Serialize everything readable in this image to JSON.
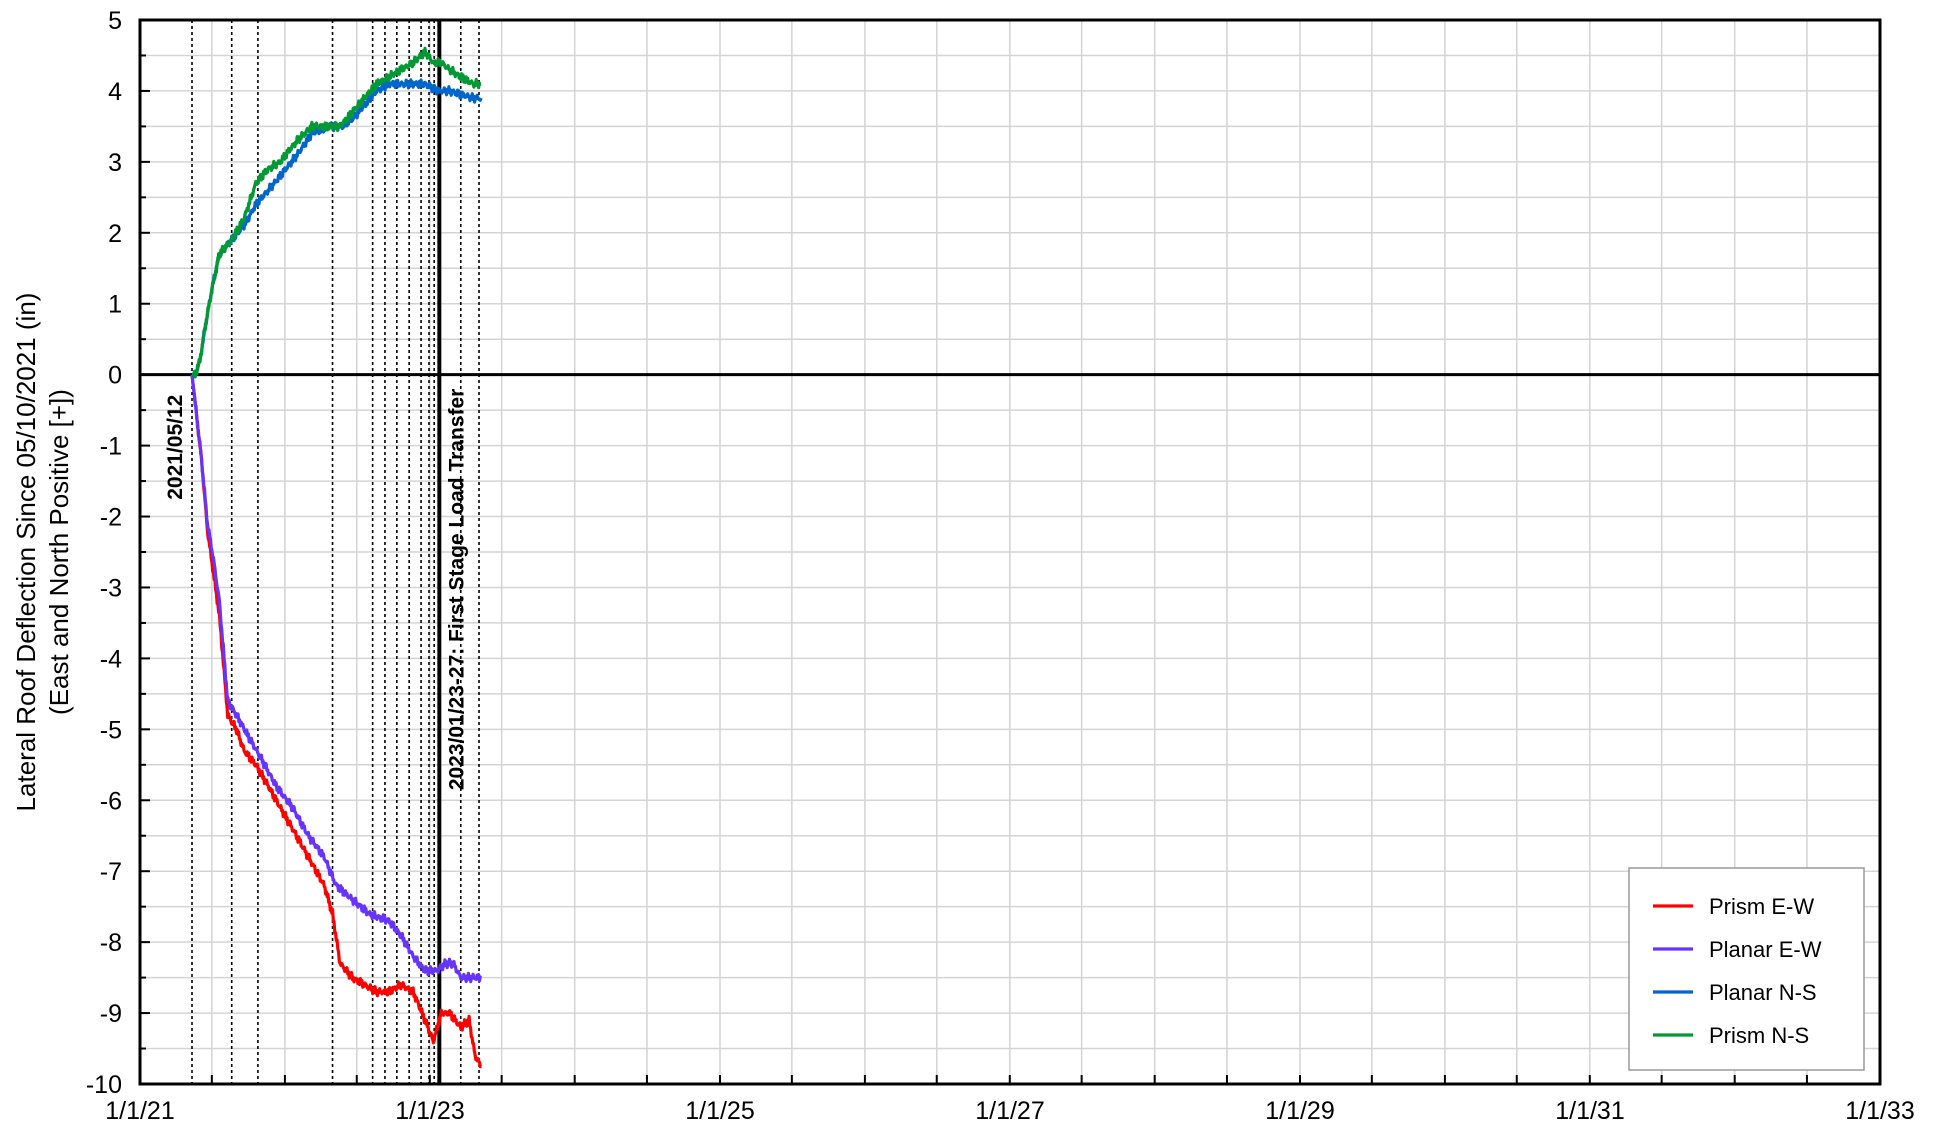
{
  "chart_data": {
    "type": "line",
    "title": "",
    "xlabel": "",
    "ylabel": [
      "Lateral Roof Deflection Since 05/10/2021 (in)",
      "(East and North Positive [+])"
    ],
    "x_ticks": [
      "1/1/21",
      "1/1/23",
      "1/1/25",
      "1/1/27",
      "1/1/29",
      "1/1/31",
      "1/1/33"
    ],
    "y_ticks": [
      "-10",
      "-9",
      "-8",
      "-7",
      "-6",
      "-5",
      "-4",
      "-3",
      "-2",
      "-1",
      "0",
      "1",
      "2",
      "3",
      "4",
      "5"
    ],
    "xlim": [
      "2021-01-01",
      "2033-01-01"
    ],
    "ylim": [
      -10,
      5
    ],
    "grid": true,
    "legend_position": "bottom-right",
    "annotations": [
      {
        "date": "2021-05-12",
        "label": "2021/05/12"
      },
      {
        "date": "2023-01-25",
        "label": "2023/01/23-27: First Stage Load Transfer"
      }
    ],
    "event_dates": [
      "2021-05-12",
      "2021-08-20",
      "2021-10-25",
      "2022-05-01",
      "2022-08-10",
      "2022-09-10",
      "2022-10-10",
      "2022-11-10",
      "2022-12-10",
      "2022-12-30",
      "2023-01-12",
      "2023-01-25",
      "2023-03-20",
      "2023-05-05"
    ],
    "series": [
      {
        "name": "Prism E-W",
        "color": "#ff0000",
        "points": [
          [
            "2021-05-12",
            0
          ],
          [
            "2021-05-20",
            -0.4
          ],
          [
            "2021-06-05",
            -1.2
          ],
          [
            "2021-06-20",
            -2.2
          ],
          [
            "2021-07-05",
            -2.8
          ],
          [
            "2021-07-20",
            -3.4
          ],
          [
            "2021-08-01",
            -4.2
          ],
          [
            "2021-08-10",
            -4.8
          ],
          [
            "2021-09-01",
            -5.0
          ],
          [
            "2021-09-20",
            -5.3
          ],
          [
            "2021-10-20",
            -5.5
          ],
          [
            "2021-11-20",
            -5.8
          ],
          [
            "2021-12-20",
            -6.1
          ],
          [
            "2022-01-20",
            -6.4
          ],
          [
            "2022-03-01",
            -6.8
          ],
          [
            "2022-04-10",
            -7.2
          ],
          [
            "2022-05-01",
            -7.6
          ],
          [
            "2022-05-20",
            -8.3
          ],
          [
            "2022-06-20",
            -8.5
          ],
          [
            "2022-07-20",
            -8.6
          ],
          [
            "2022-08-20",
            -8.7
          ],
          [
            "2022-09-20",
            -8.7
          ],
          [
            "2022-10-20",
            -8.6
          ],
          [
            "2022-11-20",
            -8.7
          ],
          [
            "2022-12-20",
            -9.1
          ],
          [
            "2023-01-10",
            -9.4
          ],
          [
            "2023-01-30",
            -9.0
          ],
          [
            "2023-02-20",
            -9.0
          ],
          [
            "2023-03-20",
            -9.2
          ],
          [
            "2023-04-10",
            -9.1
          ],
          [
            "2023-04-25",
            -9.6
          ],
          [
            "2023-05-10",
            -9.75
          ]
        ]
      },
      {
        "name": "Planar E-W",
        "color": "#6633ff",
        "points": [
          [
            "2021-05-12",
            0
          ],
          [
            "2021-05-20",
            -0.4
          ],
          [
            "2021-06-05",
            -1.2
          ],
          [
            "2021-06-20",
            -2.1
          ],
          [
            "2021-07-05",
            -2.6
          ],
          [
            "2021-07-20",
            -3.2
          ],
          [
            "2021-08-01",
            -4.0
          ],
          [
            "2021-08-10",
            -4.6
          ],
          [
            "2021-09-01",
            -4.8
          ],
          [
            "2021-10-01",
            -5.1
          ],
          [
            "2021-11-01",
            -5.4
          ],
          [
            "2021-12-10",
            -5.8
          ],
          [
            "2022-01-20",
            -6.1
          ],
          [
            "2022-03-01",
            -6.5
          ],
          [
            "2022-04-10",
            -6.8
          ],
          [
            "2022-05-10",
            -7.2
          ],
          [
            "2022-06-20",
            -7.4
          ],
          [
            "2022-08-01",
            -7.6
          ],
          [
            "2022-09-20",
            -7.7
          ],
          [
            "2022-10-20",
            -7.9
          ],
          [
            "2022-11-20",
            -8.2
          ],
          [
            "2022-12-20",
            -8.4
          ],
          [
            "2023-01-20",
            -8.4
          ],
          [
            "2023-02-10",
            -8.3
          ],
          [
            "2023-03-01",
            -8.3
          ],
          [
            "2023-03-20",
            -8.5
          ],
          [
            "2023-04-20",
            -8.5
          ],
          [
            "2023-05-10",
            -8.5
          ]
        ]
      },
      {
        "name": "Planar N-S",
        "color": "#0066cc",
        "points": [
          [
            "2021-05-12",
            0
          ],
          [
            "2021-05-20",
            0.0
          ],
          [
            "2021-06-01",
            0.2
          ],
          [
            "2021-06-15",
            0.7
          ],
          [
            "2021-07-01",
            1.2
          ],
          [
            "2021-07-20",
            1.7
          ],
          [
            "2021-08-20",
            1.9
          ],
          [
            "2021-09-20",
            2.1
          ],
          [
            "2021-10-20",
            2.4
          ],
          [
            "2021-11-20",
            2.6
          ],
          [
            "2021-12-20",
            2.8
          ],
          [
            "2022-02-01",
            3.1
          ],
          [
            "2022-03-10",
            3.4
          ],
          [
            "2022-04-20",
            3.5
          ],
          [
            "2022-05-20",
            3.5
          ],
          [
            "2022-06-20",
            3.6
          ],
          [
            "2022-07-20",
            3.8
          ],
          [
            "2022-08-20",
            4.0
          ],
          [
            "2022-09-20",
            4.1
          ],
          [
            "2022-10-20",
            4.1
          ],
          [
            "2022-11-20",
            4.1
          ],
          [
            "2022-12-20",
            4.1
          ],
          [
            "2023-01-20",
            4.0
          ],
          [
            "2023-02-20",
            4.0
          ],
          [
            "2023-03-20",
            3.95
          ],
          [
            "2023-04-20",
            3.9
          ],
          [
            "2023-05-10",
            3.9
          ]
        ]
      },
      {
        "name": "Prism N-S",
        "color": "#009933",
        "points": [
          [
            "2021-05-12",
            0
          ],
          [
            "2021-05-20",
            0.0
          ],
          [
            "2021-06-01",
            0.2
          ],
          [
            "2021-06-15",
            0.7
          ],
          [
            "2021-07-01",
            1.2
          ],
          [
            "2021-07-20",
            1.7
          ],
          [
            "2021-08-20",
            1.9
          ],
          [
            "2021-09-20",
            2.2
          ],
          [
            "2021-10-20",
            2.7
          ],
          [
            "2021-11-20",
            2.9
          ],
          [
            "2021-12-20",
            3.0
          ],
          [
            "2022-02-01",
            3.3
          ],
          [
            "2022-03-10",
            3.5
          ],
          [
            "2022-04-20",
            3.5
          ],
          [
            "2022-05-20",
            3.5
          ],
          [
            "2022-06-20",
            3.7
          ],
          [
            "2022-07-20",
            3.9
          ],
          [
            "2022-08-20",
            4.1
          ],
          [
            "2022-09-20",
            4.2
          ],
          [
            "2022-10-20",
            4.3
          ],
          [
            "2022-11-20",
            4.4
          ],
          [
            "2022-12-20",
            4.55
          ],
          [
            "2023-01-10",
            4.4
          ],
          [
            "2023-01-30",
            4.4
          ],
          [
            "2023-02-20",
            4.3
          ],
          [
            "2023-03-20",
            4.2
          ],
          [
            "2023-04-20",
            4.1
          ],
          [
            "2023-05-10",
            4.1
          ]
        ]
      }
    ]
  }
}
